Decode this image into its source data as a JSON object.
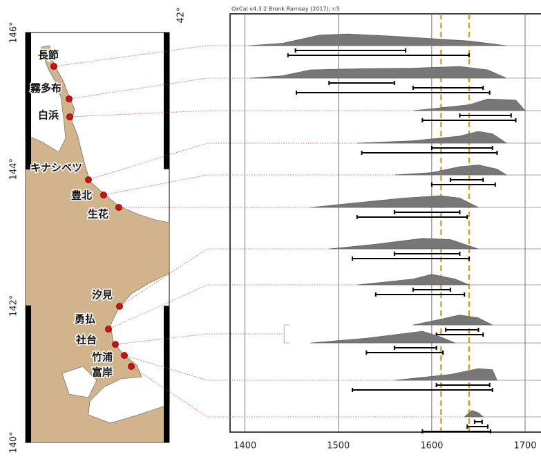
{
  "header": "OxCal v4.3.2 Bronk Ramsey (2017); r:5",
  "map": {
    "lat_ticks": [
      {
        "value": 146,
        "label": "146°"
      },
      {
        "value": 144,
        "label": "144°"
      },
      {
        "value": 142,
        "label": "142°"
      },
      {
        "value": 140,
        "label": "140°"
      }
    ],
    "lon_label": "42°"
  },
  "chart_data": {
    "type": "oxcal",
    "xlim": [
      1384,
      1717
    ],
    "xticks": [
      1400,
      1500,
      1600,
      1700
    ],
    "grid": true,
    "color": "#777777",
    "marker_color": "#e0a020",
    "markers": [
      1610,
      1640
    ],
    "sites": [
      {
        "name": "長節",
        "distributions": [
          {
            "curve": [
              [
                1404,
                0
              ],
              [
                1440,
                0.2
              ],
              [
                1480,
                0.9
              ],
              [
                1510,
                1
              ],
              [
                1560,
                0.8
              ],
              [
                1610,
                0.55
              ],
              [
                1640,
                0.4
              ],
              [
                1660,
                0.2
              ],
              [
                1680,
                0
              ]
            ],
            "ranges": [
              [
                1454,
                1572
              ],
              [
                1446,
                1640
              ]
            ]
          }
        ]
      },
      {
        "name": "霧多布",
        "distributions": [
          {
            "curve": [
              [
                1405,
                0
              ],
              [
                1440,
                0.2
              ],
              [
                1470,
                0.7
              ],
              [
                1520,
                0.8
              ],
              [
                1580,
                0.85
              ],
              [
                1630,
                1
              ],
              [
                1660,
                0.7
              ],
              [
                1680,
                0
              ]
            ],
            "ranges": [
              [
                1490,
                1560
              ],
              [
                1580,
                1655
              ],
              [
                1455,
                1662
              ]
            ]
          }
        ]
      },
      {
        "name": "白浜",
        "distributions": [
          {
            "curve": [
              [
                1580,
                0
              ],
              [
                1640,
                0.5
              ],
              [
                1660,
                1
              ],
              [
                1690,
                0.9
              ],
              [
                1700,
                0
              ]
            ],
            "ranges": [
              [
                1630,
                1685
              ],
              [
                1590,
                1690
              ]
            ]
          }
        ]
      },
      {
        "name": "キナシベツ",
        "distributions": [
          {
            "curve": [
              [
                1520,
                0
              ],
              [
                1580,
                0.2
              ],
              [
                1630,
                0.6
              ],
              [
                1650,
                1
              ],
              [
                1665,
                0.8
              ],
              [
                1680,
                0
              ]
            ],
            "ranges": [
              [
                1600,
                1665
              ],
              [
                1525,
                1670
              ]
            ]
          }
        ]
      },
      {
        "name": "豊北",
        "distributions": [
          {
            "curve": [
              [
                1560,
                0
              ],
              [
                1600,
                0.2
              ],
              [
                1630,
                0.7
              ],
              [
                1650,
                0.85
              ],
              [
                1670,
                0.5
              ],
              [
                1680,
                0
              ]
            ],
            "ranges": [
              [
                1620,
                1655
              ],
              [
                1600,
                1668
              ]
            ]
          }
        ]
      },
      {
        "name": "生花",
        "distributions": [
          {
            "curve": [
              [
                1470,
                0
              ],
              [
                1520,
                0.4
              ],
              [
                1570,
                0.8
              ],
              [
                1610,
                1
              ],
              [
                1630,
                0.8
              ],
              [
                1650,
                0
              ]
            ],
            "ranges": [
              [
                1560,
                1630
              ],
              [
                1520,
                1638
              ]
            ]
          }
        ]
      },
      {
        "name": "汐見",
        "distributions": [
          {
            "curve": [
              [
                1490,
                0
              ],
              [
                1540,
                0.4
              ],
              [
                1590,
                0.9
              ],
              [
                1620,
                0.8
              ],
              [
                1650,
                0
              ]
            ],
            "ranges": [
              [
                1560,
                1630
              ],
              [
                1515,
                1640
              ]
            ]
          }
        ]
      },
      {
        "name": "勇払",
        "distributions": [
          {
            "curve": [
              [
                1520,
                0
              ],
              [
                1580,
                0.5
              ],
              [
                1600,
                0.9
              ],
              [
                1625,
                0.5
              ],
              [
                1640,
                0
              ]
            ],
            "ranges": [
              [
                1580,
                1620
              ],
              [
                1540,
                1635
              ]
            ]
          }
        ]
      },
      {
        "name": "社台",
        "distributions": [
          {
            "curve": [
              [
                1580,
                0
              ],
              [
                1610,
                0.5
              ],
              [
                1630,
                0.85
              ],
              [
                1650,
                0.6
              ],
              [
                1665,
                0
              ]
            ],
            "ranges": [
              [
                1615,
                1650
              ],
              [
                1605,
                1655
              ]
            ]
          },
          {
            "curve": [
              [
                1470,
                0
              ],
              [
                1530,
                0.4
              ],
              [
                1590,
                1
              ],
              [
                1610,
                0.5
              ],
              [
                1625,
                0
              ]
            ],
            "ranges": [
              [
                1560,
                1605
              ],
              [
                1530,
                1612
              ]
            ]
          }
        ]
      },
      {
        "name": "竹浦",
        "distributions": [
          {
            "curve": [
              [
                1560,
                0
              ],
              [
                1620,
                0.5
              ],
              [
                1650,
                1
              ],
              [
                1665,
                0.9
              ],
              [
                1670,
                0
              ]
            ],
            "ranges": [
              [
                1605,
                1662
              ],
              [
                1515,
                1665
              ]
            ]
          }
        ]
      },
      {
        "name": "富岸",
        "distributions": [
          {
            "curve": [
              [
                1635,
                0
              ],
              [
                1643,
                0.55
              ],
              [
                1650,
                0.35
              ],
              [
                1655,
                0
              ]
            ],
            "ranges": [
              [
                1646,
                1654
              ],
              [
                1638,
                1660
              ],
              [
                1590,
                1663
              ]
            ]
          }
        ]
      }
    ]
  }
}
